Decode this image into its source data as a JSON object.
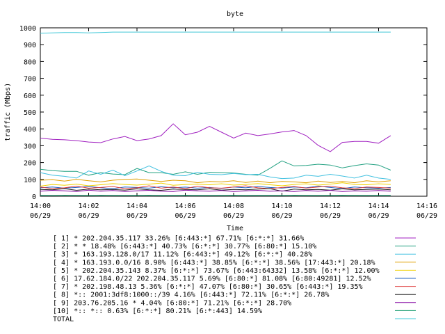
{
  "chart_data": {
    "type": "line",
    "title": "byte",
    "xlabel": "Time",
    "ylabel": "traffic (Mbps)",
    "ylim": [
      0,
      1000
    ],
    "xlim": [
      0,
      16
    ],
    "grid": false,
    "legend_placement": "below",
    "yticks": [
      {
        "value": 0,
        "label": "0"
      },
      {
        "value": 100,
        "label": "100"
      },
      {
        "value": 200,
        "label": "200"
      },
      {
        "value": 300,
        "label": "300"
      },
      {
        "value": 400,
        "label": "400"
      },
      {
        "value": 500,
        "label": "500"
      },
      {
        "value": 600,
        "label": "600"
      },
      {
        "value": 700,
        "label": "700"
      },
      {
        "value": 800,
        "label": "800"
      },
      {
        "value": 900,
        "label": "900"
      },
      {
        "value": 1000,
        "label": "1000"
      }
    ],
    "xticks": [
      {
        "value": 0,
        "time": "14:00",
        "date": "06/29"
      },
      {
        "value": 2,
        "time": "14:02",
        "date": "06/29"
      },
      {
        "value": 4,
        "time": "14:04",
        "date": "06/29"
      },
      {
        "value": 6,
        "time": "14:06",
        "date": "06/29"
      },
      {
        "value": 8,
        "time": "14:08",
        "date": "06/29"
      },
      {
        "value": 10,
        "time": "14:10",
        "date": "06/29"
      },
      {
        "value": 12,
        "time": "14:12",
        "date": "06/29"
      },
      {
        "value": 14,
        "time": "14:14",
        "date": "06/29"
      },
      {
        "value": 16,
        "time": "14:16",
        "date": "06/29"
      }
    ],
    "x": [
      0,
      0.5,
      1,
      1.5,
      2,
      2.5,
      3,
      3.5,
      4,
      4.5,
      5,
      5.5,
      6,
      6.5,
      7,
      7.5,
      8,
      8.5,
      9,
      9.5,
      10,
      10.5,
      11,
      11.5,
      12,
      12.5,
      13,
      13.5,
      14,
      14.5
    ],
    "series": [
      {
        "name": "[ 1] * 202.204.35.117 33.26%  [6:443:*] 67.71% [6:*:*] 31.66%",
        "color": "#a020c0",
        "values": [
          345,
          338,
          335,
          330,
          322,
          318,
          340,
          355,
          330,
          340,
          360,
          430,
          365,
          380,
          415,
          380,
          345,
          375,
          360,
          370,
          382,
          390,
          360,
          302,
          265,
          320,
          325,
          325,
          315,
          360
        ]
      },
      {
        "name": "[ 2] * * 18.48%  [6:443:*] 40.73% [6:*:*] 30.77% [6:80:*] 15.10%",
        "color": "#20a080",
        "values": [
          160,
          152,
          148,
          148,
          125,
          140,
          132,
          128,
          165,
          140,
          140,
          130,
          145,
          130,
          142,
          140,
          138,
          130,
          125,
          165,
          210,
          180,
          183,
          190,
          185,
          168,
          182,
          192,
          185,
          155
        ]
      },
      {
        "name": "[ 3] * 163.193.128.0/17 11.12%  [6:443:*] 49.12% [6:*:*] 40.28%",
        "color": "#40c0e0",
        "values": [
          140,
          125,
          118,
          108,
          150,
          130,
          155,
          122,
          150,
          180,
          148,
          125,
          122,
          142,
          130,
          128,
          135,
          128,
          130,
          115,
          105,
          108,
          125,
          118,
          130,
          120,
          108,
          125,
          108,
          100
        ]
      },
      {
        "name": "[ 4] * 163.193.0.0/16 8.90%  [6:443:*] 38.85% [6:*:*] 38.56% [17:443:*] 20.18%",
        "color": "#e0a000",
        "values": [
          95,
          98,
          90,
          100,
          92,
          85,
          95,
          100,
          102,
          95,
          88,
          95,
          92,
          80,
          88,
          85,
          92,
          82,
          90,
          80,
          88,
          85,
          80,
          90,
          82,
          88,
          80,
          92,
          85,
          92
        ]
      },
      {
        "name": "[ 5] * 202.204.35.143 8.37%  [6:*:*] 73.67% [6:443:64332] 13.58% [6:*:*] 12.00%",
        "color": "#f0d000",
        "values": [
          60,
          70,
          65,
          72,
          62,
          68,
          75,
          70,
          66,
          72,
          78,
          65,
          70,
          72,
          68,
          74,
          66,
          70,
          75,
          68,
          62,
          70,
          74,
          66,
          72,
          80,
          70,
          68,
          74,
          70
        ]
      },
      {
        "name": "[ 6] 17.62.184.0/22 202.204.35.117 5.69%  [6:80:*] 81.08% [6:80:49281] 12.52%",
        "color": "#2060c0",
        "values": [
          50,
          55,
          48,
          52,
          58,
          50,
          45,
          55,
          52,
          48,
          56,
          50,
          54,
          48,
          52,
          46,
          55,
          50,
          58,
          52,
          48,
          55,
          50,
          60,
          52,
          45,
          55,
          50,
          48,
          52
        ]
      },
      {
        "name": "[ 7] * 202.198.48.13 5.36%  [6:*:*] 47.07% [6:80:*] 30.65% [6:443:*] 19.35%",
        "color": "#e04040",
        "values": [
          55,
          45,
          50,
          60,
          48,
          52,
          58,
          45,
          50,
          62,
          48,
          55,
          45,
          60,
          50,
          48,
          55,
          62,
          50,
          45,
          52,
          58,
          48,
          55,
          60,
          50,
          45,
          55,
          52,
          48
        ]
      },
      {
        "name": "[ 8] *:: 2001:3df8:1000::/39 4.16%  [6:443:*] 72.11% [6:*:*] 26.78%",
        "color": "#202020",
        "values": [
          40,
          38,
          45,
          35,
          42,
          38,
          40,
          36,
          44,
          38,
          35,
          42,
          40,
          38,
          44,
          36,
          40,
          38,
          42,
          45,
          30,
          42,
          38,
          40,
          36,
          44,
          38,
          40,
          42,
          38
        ]
      },
      {
        "name": "[ 9] 203.76.205.16 * 4.04%  [6:80:*] 71.21% [6:*:*] 28.70%",
        "color": "#8000a0",
        "values": [
          30,
          35,
          32,
          28,
          36,
          30,
          34,
          28,
          32,
          35,
          30,
          28,
          36,
          32,
          30,
          34,
          28,
          32,
          35,
          30,
          32,
          28,
          34,
          30,
          35,
          28,
          32,
          30,
          34,
          30
        ]
      },
      {
        "name": "[10] *:: *:: 0.63%  [6:*:*] 80.21% [6:*:443] 14.59%",
        "color": "#009060",
        "values": [
          5,
          4,
          6,
          5,
          4,
          6,
          5,
          4,
          5,
          6,
          4,
          5,
          6,
          5,
          4,
          5,
          6,
          4,
          5,
          5,
          4,
          6,
          5,
          4,
          5,
          6,
          5,
          4,
          5,
          5
        ]
      },
      {
        "name": "TOTAL",
        "color": "#40c8d8",
        "values": [
          968,
          970,
          972,
          972,
          970,
          972,
          975,
          975,
          975,
          975,
          975,
          975,
          975,
          975,
          975,
          975,
          975,
          975,
          975,
          975,
          975,
          975,
          975,
          975,
          975,
          975,
          975,
          975,
          975,
          975
        ]
      }
    ]
  }
}
